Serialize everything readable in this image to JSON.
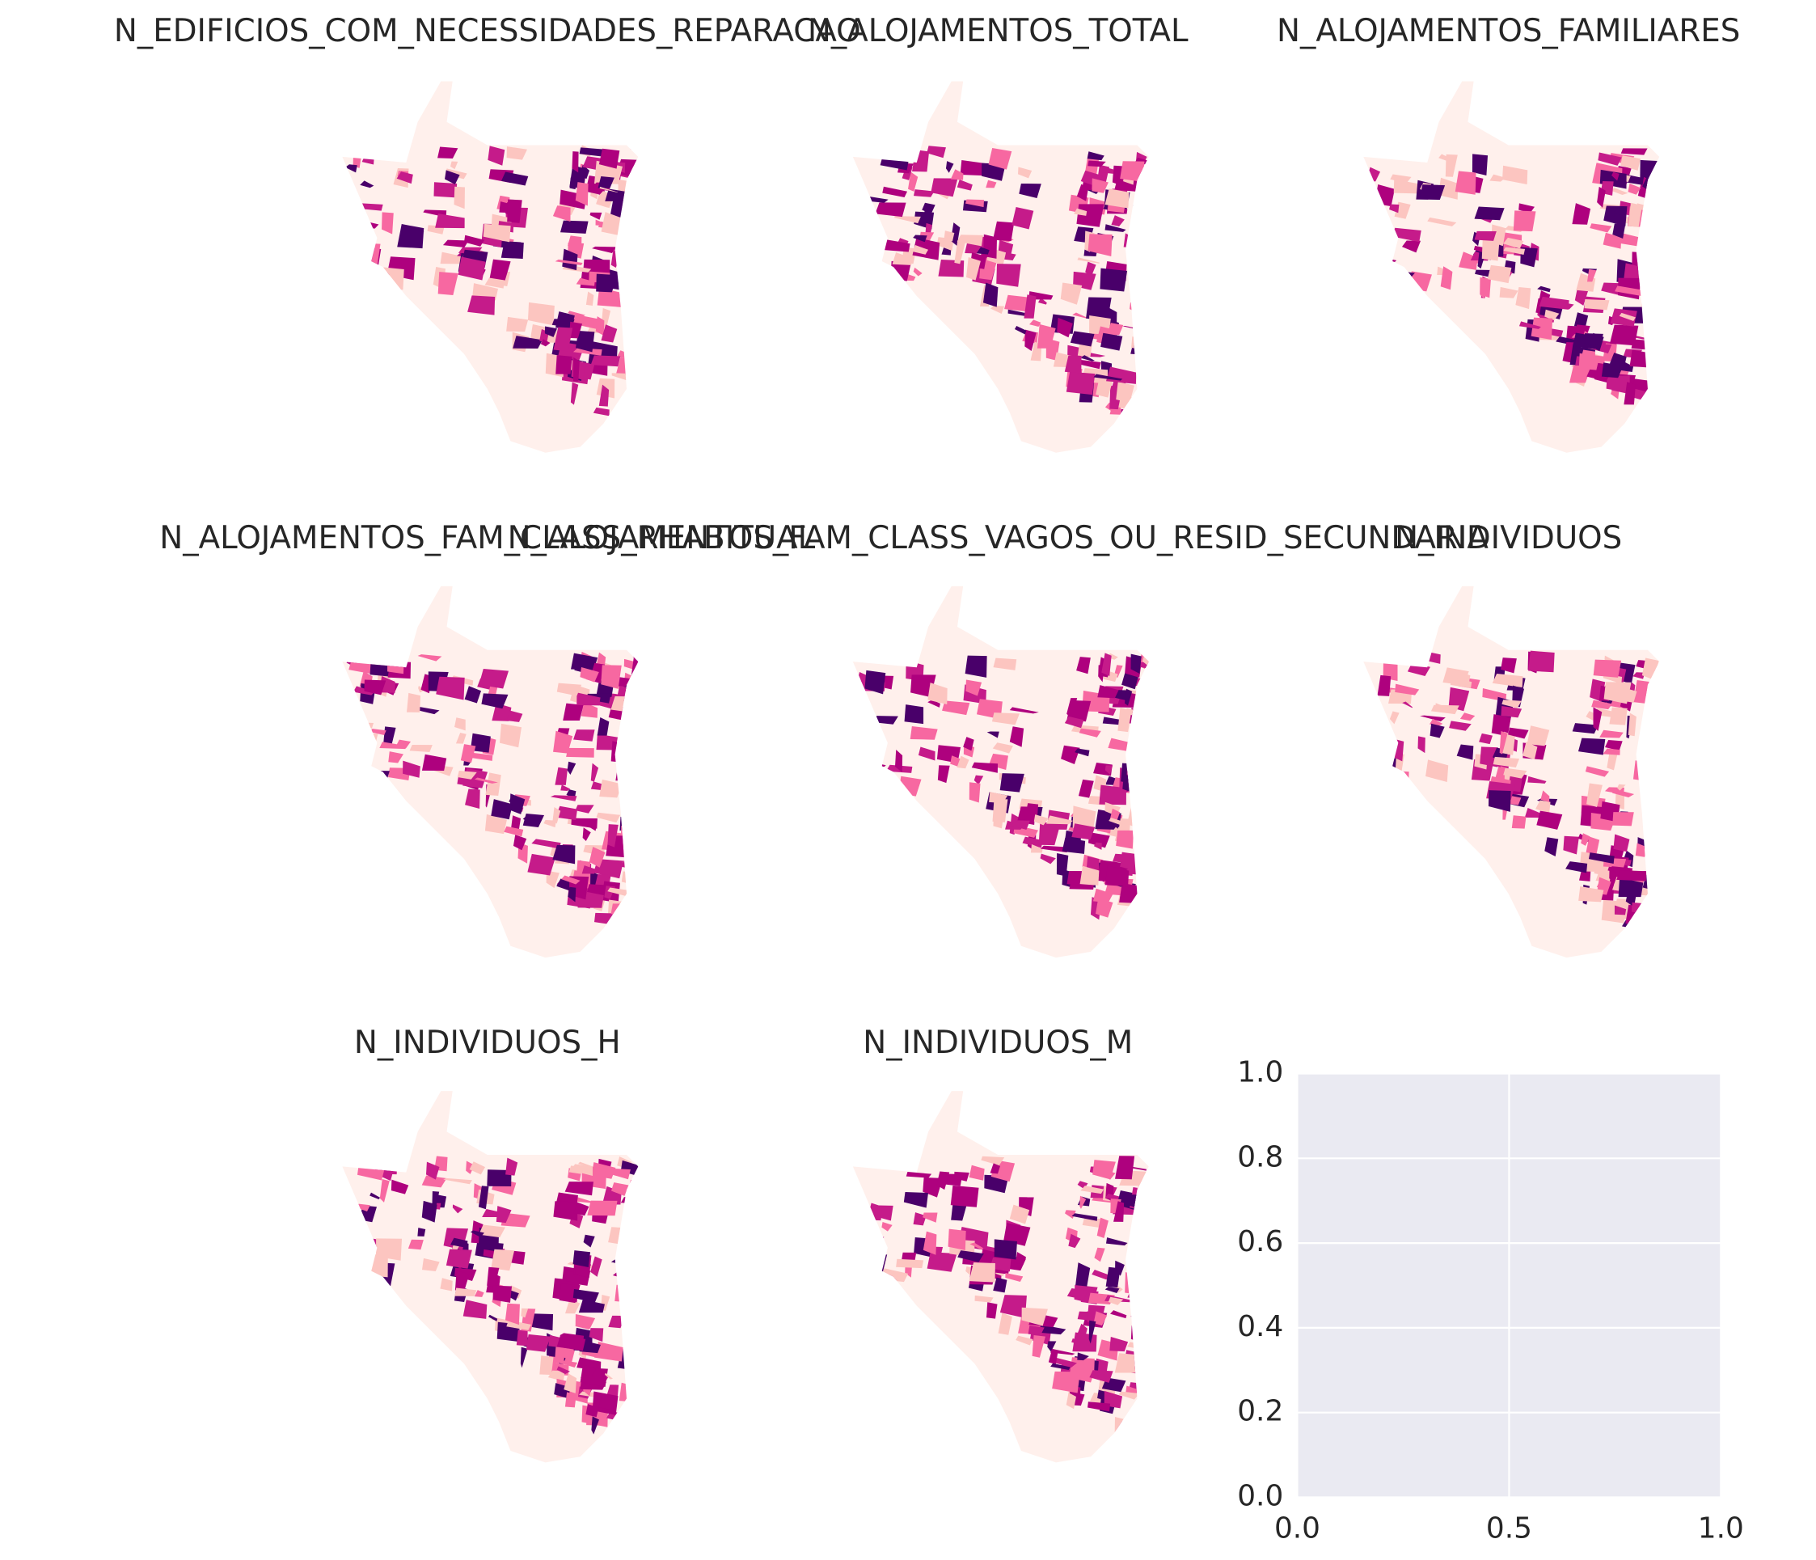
{
  "maps": [
    {
      "title": "N_EDIFICIOS_COM_NECESSIDADES_REPARACAO"
    },
    {
      "title": "N_ALOJAMENTOS_TOTAL"
    },
    {
      "title": "N_ALOJAMENTOS_FAMILIARES"
    },
    {
      "title": "N_ALOJAMENTOS_FAM_CLASS_RHABITUAL"
    },
    {
      "title": "N_ALOJAMENTOS_FAM_CLASS_VAGOS_OU_RESID_SECUNDARIA"
    },
    {
      "title": "N_INDIVIDUOS"
    },
    {
      "title": "N_INDIVIDUOS_H"
    },
    {
      "title": "N_INDIVIDUOS_M"
    }
  ],
  "chart_data": {
    "type": "empty",
    "xlim": [
      0,
      1
    ],
    "ylim": [
      0,
      1
    ],
    "xticks": [
      {
        "value": 0,
        "label": "0.0"
      },
      0.5,
      {
        "value": 1,
        "label": "1.0"
      }
    ],
    "yticks": [
      {
        "value": 0,
        "label": "0.0"
      },
      0.2,
      0.4,
      0.6,
      0.8,
      {
        "value": 1,
        "label": "1.0"
      }
    ],
    "grid": true
  }
}
